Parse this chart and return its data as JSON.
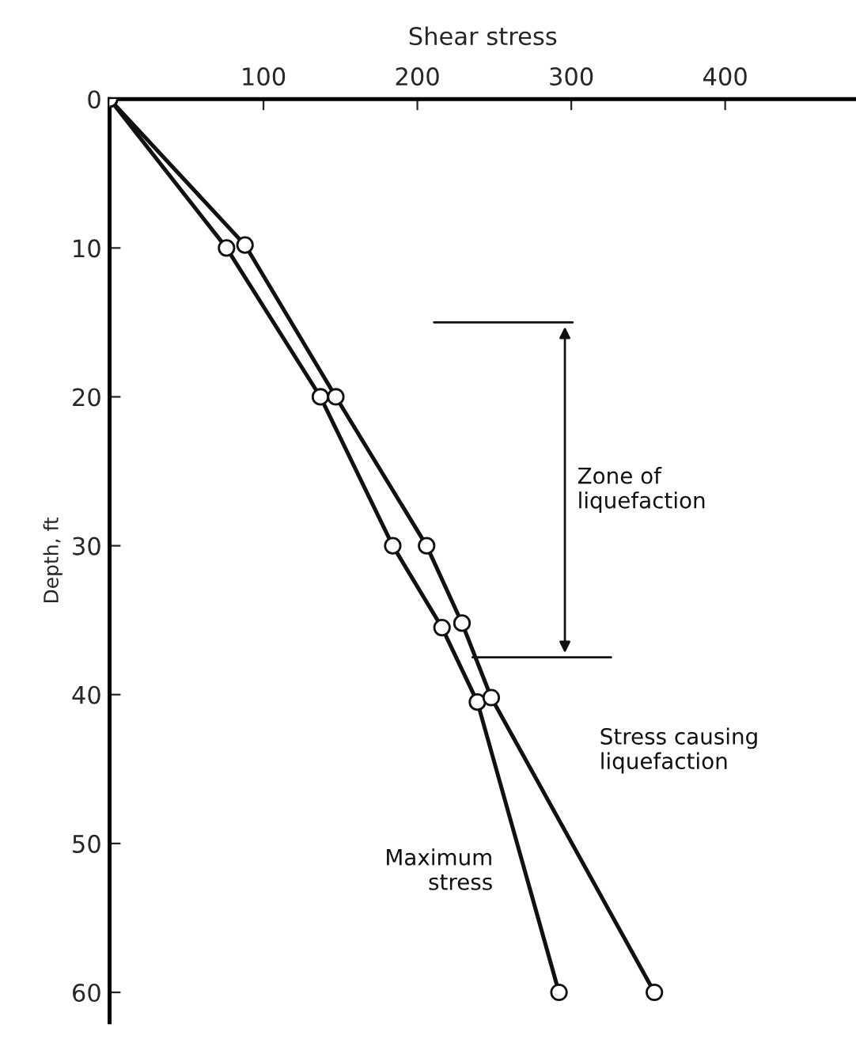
{
  "chart_data": {
    "type": "line",
    "xlabel": "Shear stress",
    "ylabel": "Depth, ft",
    "xlim": [
      0,
      485
    ],
    "xticks": [
      100,
      200,
      300,
      400
    ],
    "ylim": [
      62,
      0
    ],
    "yticks": [
      0,
      10,
      20,
      30,
      40,
      50,
      60
    ],
    "marker": "circle",
    "line_style": "solid",
    "grid": false,
    "legend": false,
    "series": [
      {
        "name": "Maximum\nstress",
        "color": "#111111",
        "x": [
          0,
          76,
          137,
          184,
          216,
          239,
          292
        ],
        "values": [
          0,
          10,
          20,
          30,
          35.5,
          40.5,
          60
        ]
      },
      {
        "name": "Stress causing\nliquefaction",
        "color": "#111111",
        "x": [
          0,
          88,
          147,
          206,
          229,
          248,
          354
        ],
        "values": [
          0,
          9.8,
          20,
          30,
          35.2,
          40.2,
          60
        ]
      }
    ],
    "ref_lines": [
      {
        "axis": "y",
        "value": 15,
        "color": "#111111"
      },
      {
        "axis": "y",
        "value": 37.5,
        "color": "#111111"
      }
    ],
    "annotations": [
      "Zone of\nliquefaction"
    ]
  }
}
